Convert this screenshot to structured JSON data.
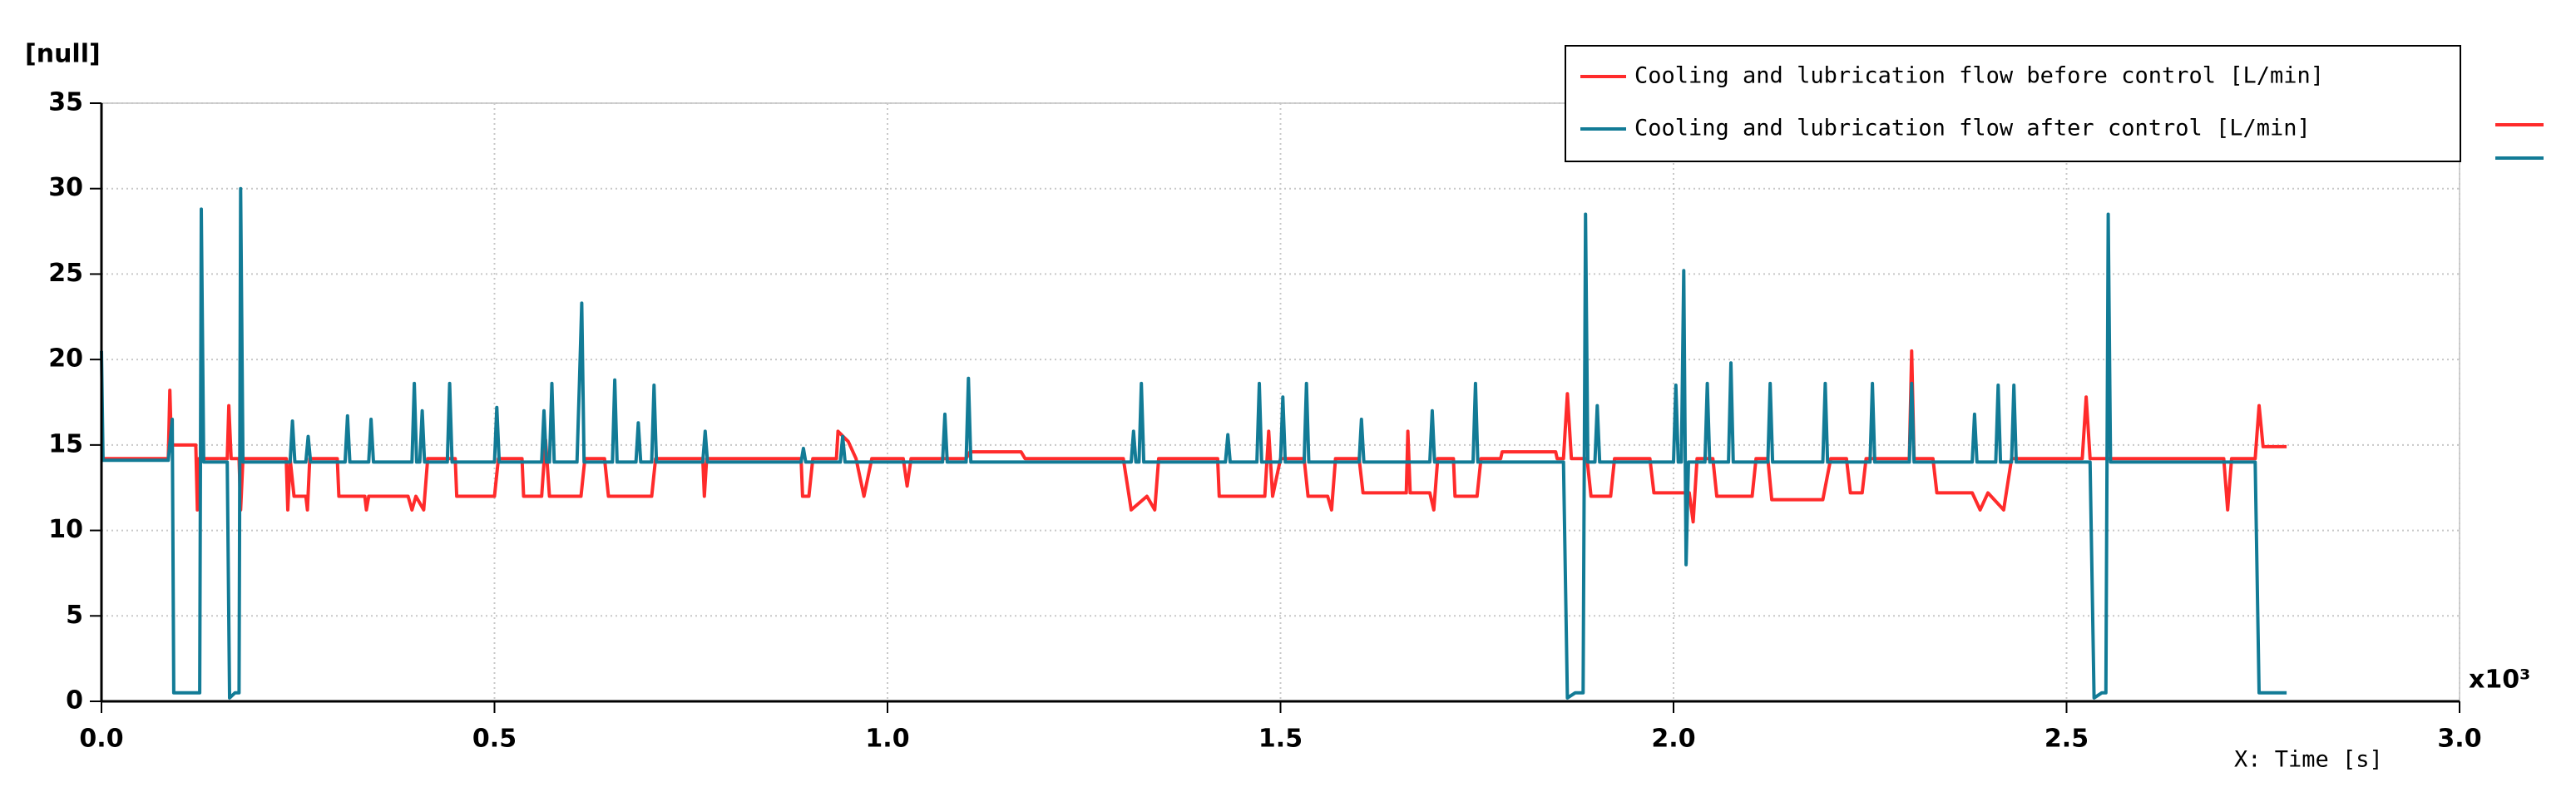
{
  "chart_data": {
    "type": "line",
    "y_label": "[null]",
    "x_label": "X: Time [s]",
    "x_multiplier": "x10³",
    "ylim": [
      0,
      35
    ],
    "yticks": [
      0,
      5,
      10,
      15,
      20,
      25,
      30,
      35
    ],
    "xlim": [
      0,
      3
    ],
    "xticks": [
      {
        "value": 0,
        "label": "0.0"
      },
      0.5,
      {
        "value": 1,
        "label": "1.0"
      },
      1.5,
      {
        "value": 2,
        "label": "2.0"
      },
      2.5,
      {
        "value": 3,
        "label": "3.0"
      }
    ],
    "grid": true,
    "legend": "upper right",
    "series": [
      {
        "name": "Cooling and lubrication flow before control [L/min]",
        "color": "#ff2b2b",
        "x": [
          0,
          0.085,
          0.087,
          0.089,
          0.12,
          0.122,
          0.124,
          0.16,
          0.162,
          0.165,
          0.175,
          0.177,
          0.18,
          0.235,
          0.237,
          0.24,
          0.245,
          0.26,
          0.262,
          0.265,
          0.3,
          0.302,
          0.335,
          0.337,
          0.34,
          0.39,
          0.395,
          0.4,
          0.41,
          0.415,
          0.45,
          0.452,
          0.5,
          0.505,
          0.535,
          0.537,
          0.56,
          0.565,
          0.57,
          0.61,
          0.615,
          0.64,
          0.645,
          0.7,
          0.705,
          0.765,
          0.767,
          0.77,
          0.89,
          0.892,
          0.9,
          0.905,
          0.935,
          0.937,
          0.95,
          0.96,
          0.97,
          0.98,
          1.02,
          1.025,
          1.03,
          1.1,
          1.105,
          1.17,
          1.175,
          1.3,
          1.31,
          1.33,
          1.34,
          1.345,
          1.42,
          1.422,
          1.48,
          1.485,
          1.49,
          1.5,
          1.53,
          1.535,
          1.56,
          1.565,
          1.57,
          1.6,
          1.605,
          1.66,
          1.662,
          1.665,
          1.69,
          1.695,
          1.7,
          1.72,
          1.722,
          1.75,
          1.755,
          1.78,
          1.782,
          1.85,
          1.852,
          1.86,
          1.865,
          1.87,
          1.89,
          1.895,
          1.92,
          1.925,
          1.97,
          1.975,
          2.02,
          2.025,
          2.03,
          2.05,
          2.055,
          2.1,
          2.105,
          2.12,
          2.125,
          2.19,
          2.2,
          2.22,
          2.225,
          2.24,
          2.245,
          2.3,
          2.303,
          2.306,
          2.33,
          2.335,
          2.38,
          2.39,
          2.4,
          2.42,
          2.43,
          2.52,
          2.525,
          2.53,
          2.7,
          2.705,
          2.71,
          2.74,
          2.745,
          2.75,
          2.78
        ],
        "values": [
          14.2,
          14.2,
          18.2,
          15,
          15,
          11.2,
          14.2,
          14.2,
          17.3,
          14.2,
          14.2,
          11.2,
          14.2,
          14.2,
          11.2,
          14.2,
          12,
          12,
          11.2,
          14.2,
          14.2,
          12,
          12,
          11.2,
          12,
          12,
          11.2,
          12,
          11.2,
          14.2,
          14.2,
          12,
          12,
          14.2,
          14.2,
          12,
          12,
          15.3,
          12,
          12,
          14.2,
          14.2,
          12,
          12,
          14.2,
          14.2,
          12,
          14.2,
          14.2,
          12,
          12,
          14.2,
          14.2,
          15.8,
          15.2,
          14.2,
          12,
          14.2,
          14.2,
          12.6,
          14.2,
          14.2,
          14.6,
          14.6,
          14.2,
          14.2,
          11.2,
          12,
          11.2,
          14.2,
          14.2,
          12,
          12,
          15.8,
          12,
          14.2,
          14.2,
          12,
          12,
          11.2,
          14.2,
          14.2,
          12.2,
          12.2,
          15.8,
          12.2,
          12.2,
          11.2,
          14.2,
          14.2,
          12,
          12,
          14.2,
          14.2,
          14.6,
          14.6,
          14.2,
          14.2,
          18,
          14.2,
          14.2,
          12,
          12,
          14.2,
          14.2,
          12.2,
          12.2,
          10.5,
          14.2,
          14.2,
          12,
          12,
          14.2,
          14.2,
          11.8,
          11.8,
          14.2,
          14.2,
          12.2,
          12.2,
          14.2,
          14.2,
          20.5,
          14.2,
          14.2,
          12.2,
          12.2,
          11.2,
          12.2,
          11.2,
          14.2,
          14.2,
          17.8,
          14.2,
          14.2,
          11.2,
          14.2,
          14.2,
          17.3,
          14.9,
          14.9
        ]
      },
      {
        "name": "Cooling and lubrication flow after control [L/min]",
        "color": "#127b96",
        "x": [
          0,
          0.002,
          0.085,
          0.09,
          0.092,
          0.125,
          0.127,
          0.13,
          0.16,
          0.163,
          0.17,
          0.175,
          0.177,
          0.18,
          0.24,
          0.243,
          0.246,
          0.26,
          0.263,
          0.266,
          0.31,
          0.313,
          0.316,
          0.34,
          0.343,
          0.346,
          0.395,
          0.398,
          0.401,
          0.405,
          0.408,
          0.411,
          0.44,
          0.443,
          0.446,
          0.5,
          0.503,
          0.506,
          0.56,
          0.563,
          0.566,
          0.57,
          0.573,
          0.576,
          0.605,
          0.608,
          0.611,
          0.614,
          0.65,
          0.653,
          0.656,
          0.68,
          0.683,
          0.686,
          0.7,
          0.703,
          0.706,
          0.765,
          0.768,
          0.771,
          0.89,
          0.893,
          0.896,
          0.94,
          0.943,
          0.946,
          1.07,
          1.073,
          1.076,
          1.1,
          1.103,
          1.106,
          1.31,
          1.313,
          1.316,
          1.32,
          1.323,
          1.326,
          1.43,
          1.433,
          1.436,
          1.47,
          1.473,
          1.476,
          1.5,
          1.503,
          1.506,
          1.53,
          1.533,
          1.536,
          1.6,
          1.603,
          1.606,
          1.69,
          1.693,
          1.696,
          1.745,
          1.748,
          1.751,
          1.86,
          1.865,
          1.875,
          1.885,
          1.888,
          1.891,
          1.9,
          1.903,
          1.906,
          2.0,
          2.003,
          2.006,
          2.01,
          2.013,
          2.016,
          2.019,
          2.04,
          2.043,
          2.046,
          2.07,
          2.073,
          2.076,
          2.12,
          2.123,
          2.126,
          2.19,
          2.193,
          2.196,
          2.25,
          2.253,
          2.256,
          2.3,
          2.303,
          2.306,
          2.38,
          2.383,
          2.386,
          2.41,
          2.413,
          2.416,
          2.43,
          2.433,
          2.436,
          2.53,
          2.535,
          2.545,
          2.55,
          2.553,
          2.556,
          2.74,
          2.745,
          2.78
        ],
        "values": [
          20.5,
          14.1,
          14.1,
          16.5,
          0.5,
          0.5,
          28.8,
          14,
          14,
          0.2,
          0.5,
          0.5,
          30,
          14,
          14,
          16.4,
          14,
          14,
          15.5,
          14,
          14,
          16.7,
          14,
          14,
          16.5,
          14,
          14,
          18.6,
          14,
          14,
          17,
          14,
          14,
          18.6,
          14,
          14,
          17.2,
          14,
          14,
          17,
          14,
          14,
          18.6,
          14,
          14,
          18.6,
          23.3,
          14,
          14,
          18.8,
          14,
          14,
          16.3,
          14,
          14,
          18.5,
          14,
          14,
          15.8,
          14,
          14,
          14.8,
          14,
          14,
          15.5,
          14,
          14,
          16.8,
          14,
          14,
          18.9,
          14,
          14,
          15.8,
          14,
          14,
          18.6,
          14,
          14,
          15.6,
          14,
          14,
          18.6,
          14,
          14,
          17.8,
          14,
          14,
          18.6,
          14,
          14,
          16.5,
          14,
          14,
          17,
          14,
          14,
          18.6,
          14,
          14,
          0.2,
          0.5,
          0.5,
          28.5,
          14,
          14,
          17.3,
          14,
          14,
          18.5,
          14,
          14,
          25.2,
          8,
          14,
          14,
          18.6,
          14,
          14,
          19.8,
          14,
          14,
          18.6,
          14,
          14,
          18.6,
          14,
          14,
          18.6,
          14,
          14,
          18.6,
          14,
          14,
          16.8,
          14,
          14,
          18.5,
          14,
          14,
          18.5,
          14,
          14,
          0.2,
          0.5,
          0.5,
          28.5,
          14,
          14,
          0.5,
          0.5
        ]
      }
    ]
  }
}
